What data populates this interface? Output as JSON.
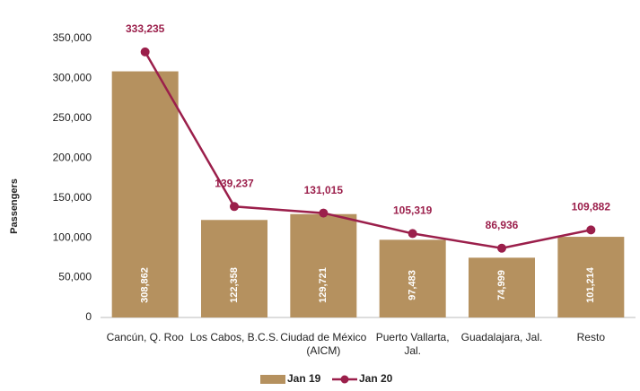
{
  "chart_data": {
    "type": "bar_line",
    "y_label": "Passengers",
    "categories": [
      "Cancún, Q. Roo",
      "Los Cabos, B.C.S.",
      "Ciudad de México (AICM)",
      "Puerto Vallarta, Jal.",
      "Guadalajara, Jal.",
      "Resto"
    ],
    "series": [
      {
        "name": "Jan 19",
        "type": "bar",
        "color": "#b5915f",
        "values": [
          308862,
          122358,
          129721,
          97483,
          74999,
          101214
        ],
        "value_labels": [
          "308,862",
          "122,358",
          "129,721",
          "97,483",
          "74,999",
          "101,214"
        ]
      },
      {
        "name": "Jan 20",
        "type": "line",
        "color": "#9b1f4b",
        "values": [
          333235,
          139237,
          131015,
          105319,
          86936,
          109882
        ],
        "value_labels": [
          "333,235",
          "139,237",
          "131,015",
          "105,319",
          "86,936",
          "109,882"
        ]
      }
    ],
    "ylim": [
      0,
      350000
    ],
    "yticks": [
      0,
      {
        "value": 50000,
        "label": "50,000"
      },
      {
        "value": 100000,
        "label": "100,000"
      },
      {
        "value": 150000,
        "label": "150,000"
      },
      {
        "value": 200000,
        "label": "200,000"
      },
      {
        "value": 250000,
        "label": "250,000"
      },
      {
        "value": 300000,
        "label": "300,000"
      },
      {
        "value": 350000,
        "label": "350,000"
      }
    ],
    "grid": false,
    "legend": "bottom"
  }
}
